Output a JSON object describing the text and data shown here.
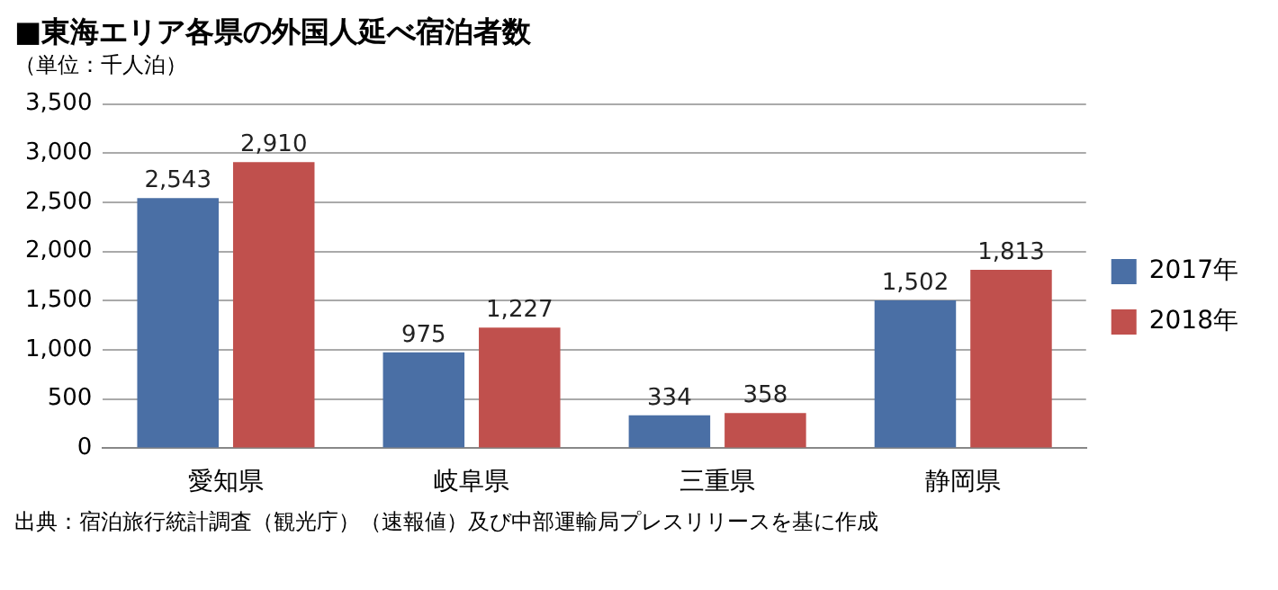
{
  "chart_data": {
    "type": "bar",
    "title": "■東海エリア各県の外国人延べ宿泊者数",
    "subtitle": "（単位：千人泊）",
    "categories": [
      "愛知県",
      "岐阜県",
      "三重県",
      "静岡県"
    ],
    "series": [
      {
        "name": "2017年",
        "color": "#4a6fa5",
        "values": [
          2543,
          975,
          334,
          1502
        ],
        "value_labels": [
          "2,543",
          "975",
          "334",
          "1,502"
        ]
      },
      {
        "name": "2018年",
        "color": "#c0504d",
        "values": [
          2910,
          1227,
          358,
          1813
        ],
        "value_labels": [
          "2,910",
          "1,227",
          "358",
          "1,813"
        ]
      }
    ],
    "ylim": [
      0,
      3500
    ],
    "yticks": [
      0,
      500,
      {
        "value": 1000,
        "label": "1,000"
      },
      {
        "value": 1500,
        "label": "1,500"
      },
      {
        "value": 2000,
        "label": "2,000"
      },
      {
        "value": 2500,
        "label": "2,500"
      },
      {
        "value": 3000,
        "label": "3,000"
      },
      {
        "value": 3500,
        "label": "3,500"
      }
    ],
    "grid": "y",
    "legend": "right",
    "annotations": [
      "出典：宿泊旅行統計調査（観光庁）（速報値）及び中部運輸局プレスリリースを基に作成"
    ]
  }
}
